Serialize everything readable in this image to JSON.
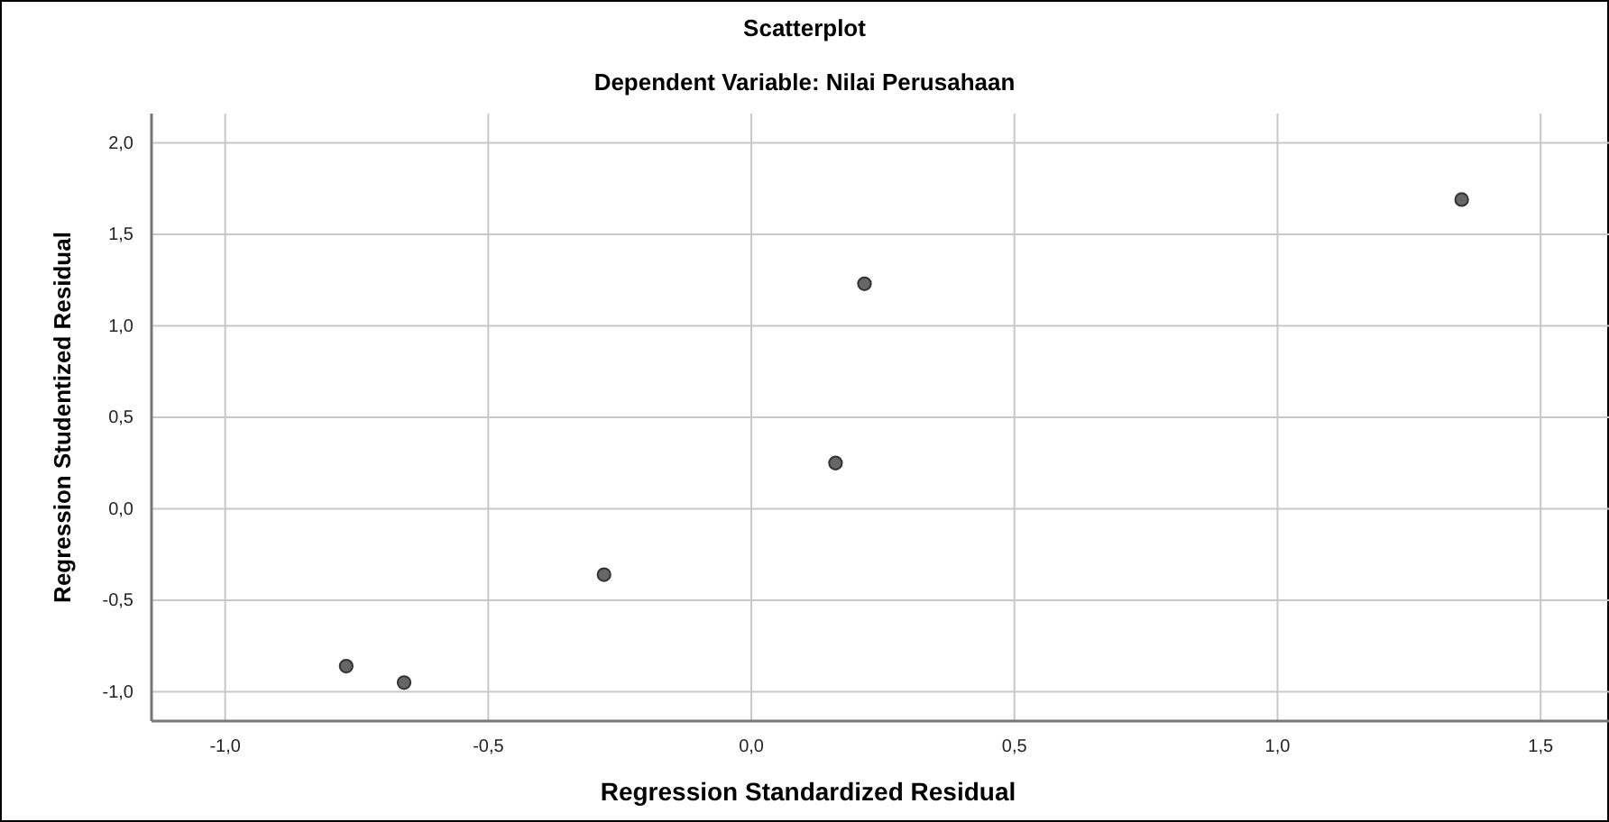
{
  "chart_data": {
    "type": "scatter",
    "title": "Scatterplot",
    "subtitle": "Dependent Variable: Nilai Perusahaan",
    "xlabel": "Regression Standardized Residual",
    "ylabel": "Regression Studentized Residual",
    "x": [
      -0.77,
      -0.66,
      -0.28,
      0.16,
      0.215,
      1.35
    ],
    "values": [
      -0.86,
      -0.95,
      -0.36,
      0.25,
      1.23,
      1.69
    ],
    "color": "#666666",
    "marker": "circle",
    "grid": true,
    "xlim": [
      -1.14,
      1.63
    ],
    "xticks": [
      {
        "value": -1,
        "label": "-1,0"
      },
      {
        "value": -0.5,
        "label": "-0,5"
      },
      {
        "value": 0,
        "label": "0,0"
      },
      {
        "value": 0.5,
        "label": "0,5"
      },
      {
        "value": 1,
        "label": "1,0"
      },
      {
        "value": 1.5,
        "label": "1,5"
      }
    ],
    "ylim": [
      -1.16,
      2.16
    ],
    "yticks": [
      {
        "value": -1,
        "label": "-1,0"
      },
      {
        "value": -0.5,
        "label": "-0,5"
      },
      {
        "value": 0,
        "label": "0,0"
      },
      {
        "value": 0.5,
        "label": "0,5"
      },
      {
        "value": 1,
        "label": "1,0"
      },
      {
        "value": 1.5,
        "label": "1,5"
      },
      {
        "value": 2,
        "label": "2,0"
      }
    ]
  }
}
